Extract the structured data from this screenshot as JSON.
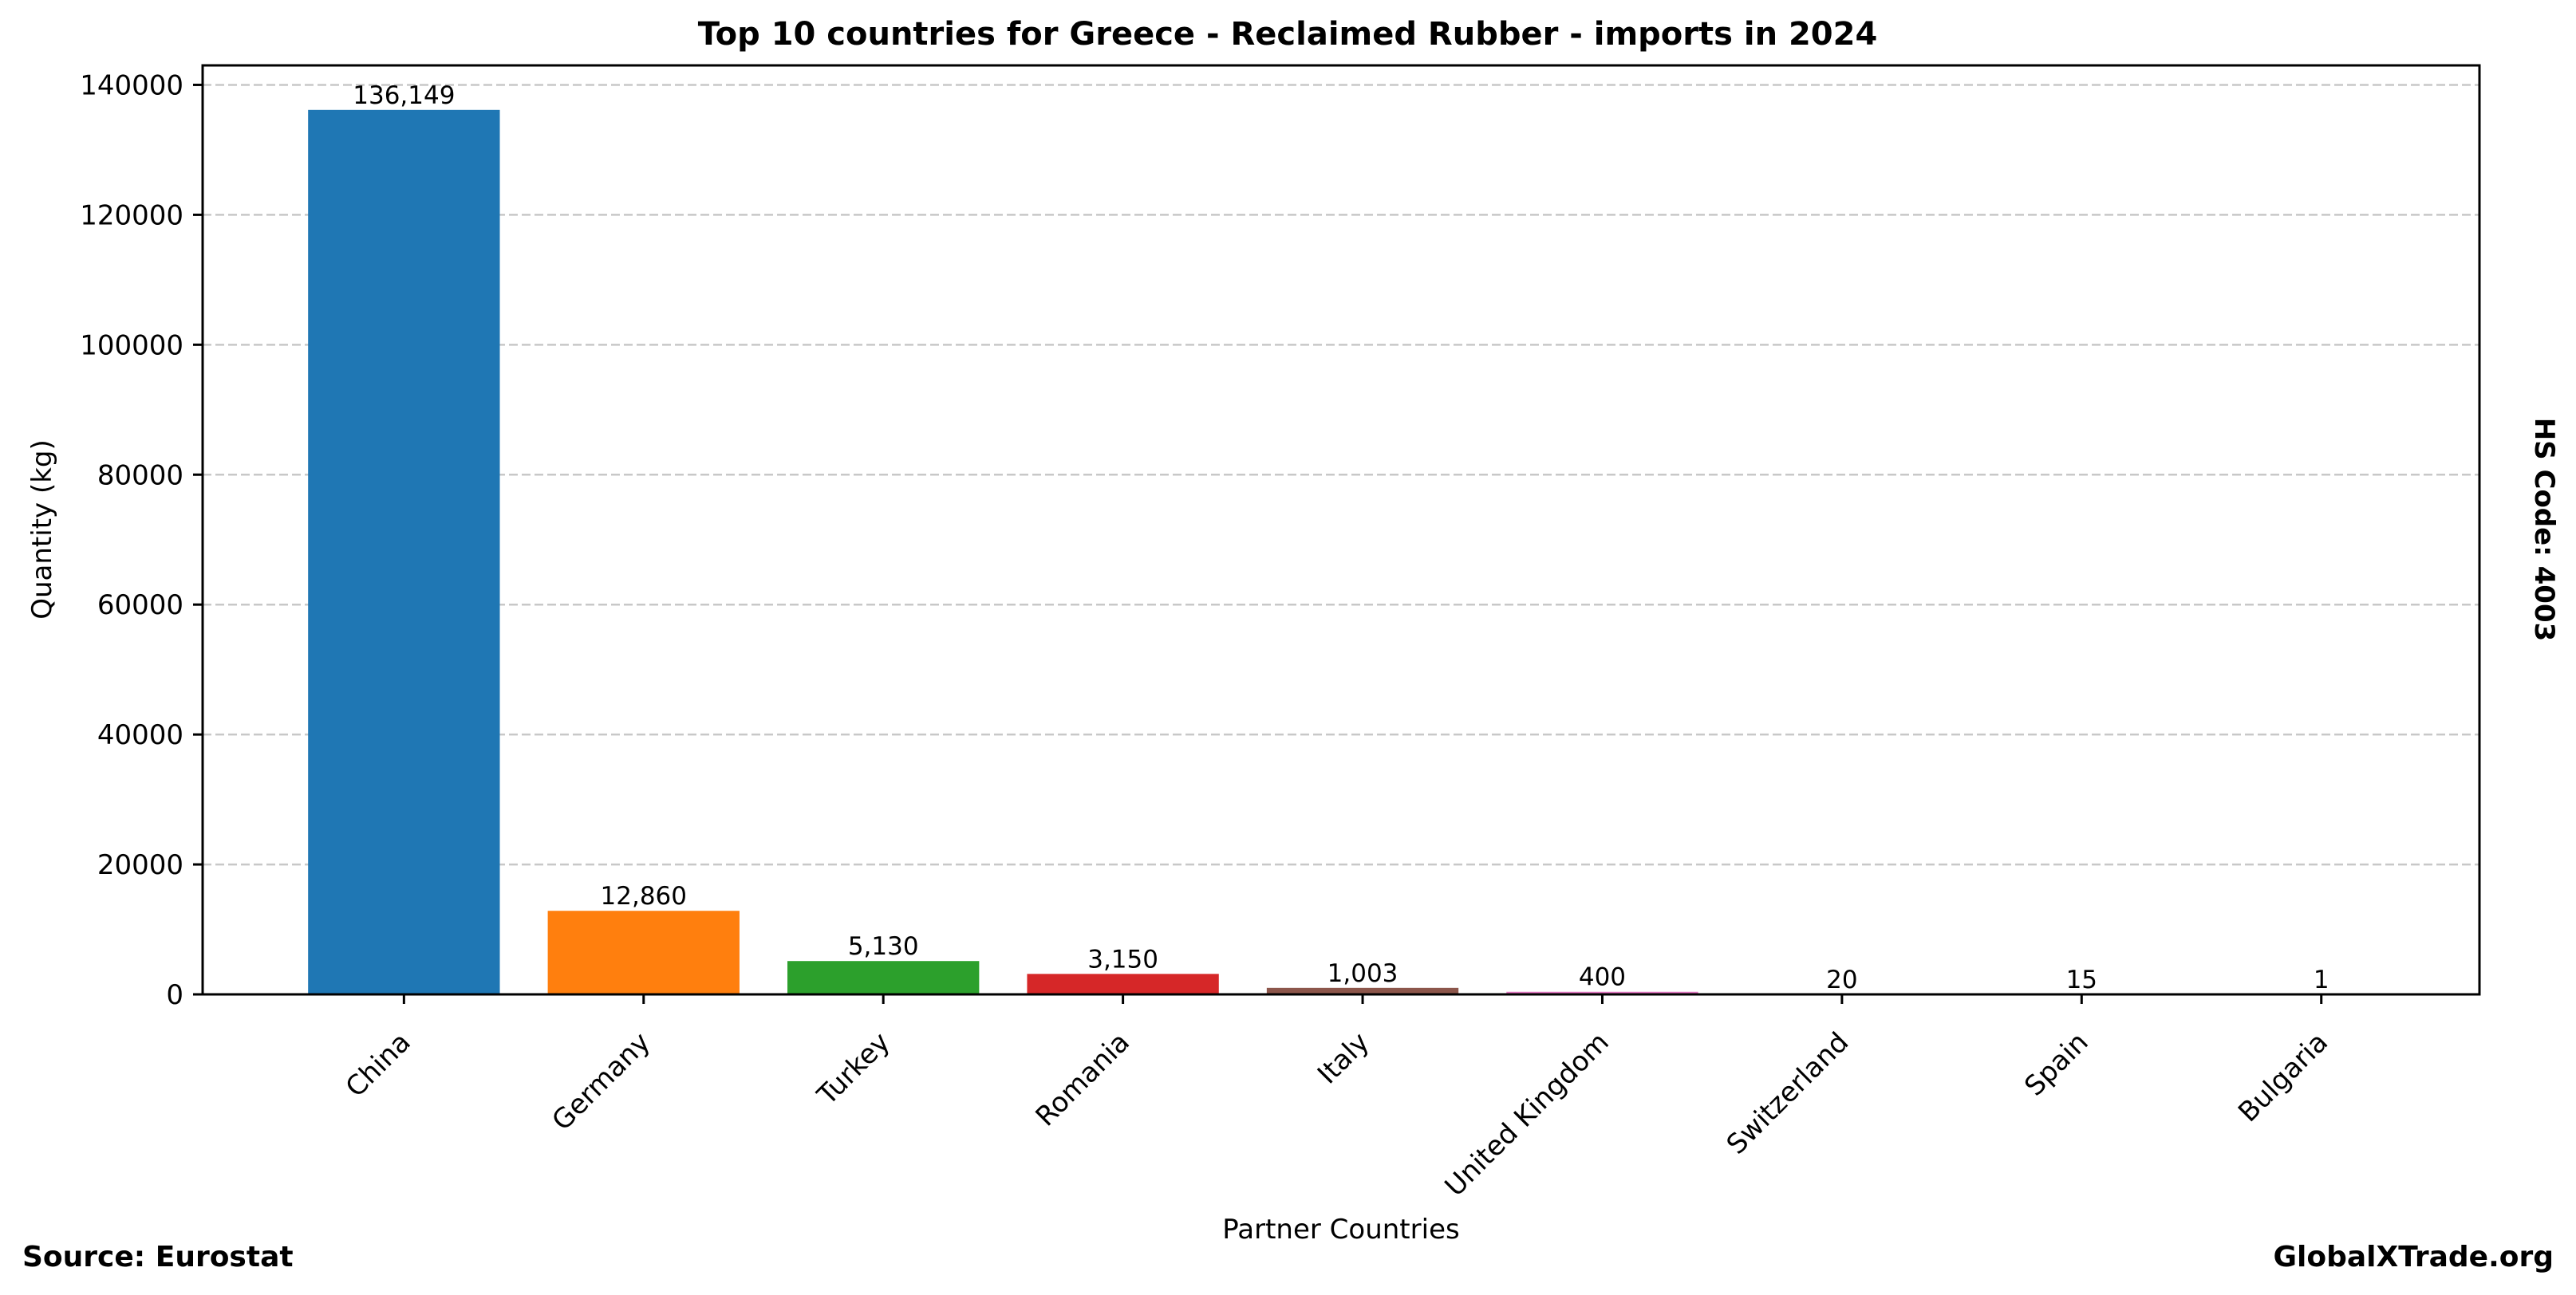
{
  "chart_data": {
    "type": "bar",
    "title": "Top 10 countries for Greece - Reclaimed Rubber - imports in 2024",
    "xlabel": "Partner Countries",
    "ylabel": "Quantity (kg)",
    "side_label": "HS Code: 4003",
    "categories": [
      "China",
      "Germany",
      "Turkey",
      "Romania",
      "Italy",
      "United Kingdom",
      "Switzerland",
      "Spain",
      "Bulgaria"
    ],
    "values": [
      136149,
      12860,
      5130,
      3150,
      1003,
      400,
      20,
      15,
      1
    ],
    "value_labels": [
      "136,149",
      "12,860",
      "5,130",
      "3,150",
      "1,003",
      "400",
      "20",
      "15",
      "1"
    ],
    "bar_colors": [
      "#1f77b4",
      "#ff7f0e",
      "#2ca02c",
      "#d62728",
      "#8c564b",
      "#e377c2",
      "#7f7f7f",
      "#bcbd22",
      "#17becf"
    ],
    "yticks": [
      0,
      20000,
      40000,
      60000,
      80000,
      100000,
      120000,
      140000
    ],
    "ylim": [
      0,
      143000
    ],
    "grid": "y-dashed",
    "legend": "none"
  },
  "footer": {
    "source": "Source: Eurostat",
    "site": "GlobalXTrade.org"
  }
}
